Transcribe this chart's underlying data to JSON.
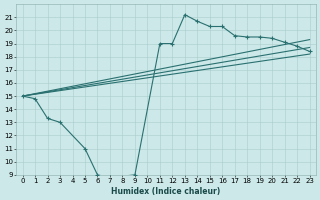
{
  "xlabel": "Humidex (Indice chaleur)",
  "bg_color": "#cce8e8",
  "line_color": "#2a7070",
  "grid_color": "#aacccc",
  "x_jagged": [
    0,
    1,
    2,
    3,
    5,
    6,
    7,
    9,
    11,
    12,
    13,
    14,
    15,
    16,
    17,
    18,
    19,
    20,
    21,
    22,
    23
  ],
  "y_jagged": [
    15.0,
    14.8,
    13.3,
    13.0,
    11.0,
    9.0,
    8.8,
    9.0,
    19.0,
    19.0,
    21.2,
    20.7,
    20.3,
    20.3,
    19.6,
    19.5,
    19.5,
    19.4,
    19.1,
    18.8,
    18.4
  ],
  "lines_straight": [
    {
      "x": [
        0,
        23
      ],
      "y": [
        15.0,
        19.3
      ]
    },
    {
      "x": [
        0,
        23
      ],
      "y": [
        15.0,
        18.7
      ]
    },
    {
      "x": [
        0,
        23
      ],
      "y": [
        15.0,
        18.2
      ]
    }
  ],
  "ylim": [
    9,
    22
  ],
  "xlim": [
    -0.5,
    23.5
  ],
  "yticks": [
    9,
    10,
    11,
    12,
    13,
    14,
    15,
    16,
    17,
    18,
    19,
    20,
    21
  ],
  "xticks": [
    0,
    1,
    2,
    3,
    4,
    5,
    6,
    7,
    8,
    9,
    10,
    11,
    12,
    13,
    14,
    15,
    16,
    17,
    18,
    19,
    20,
    21,
    22,
    23
  ]
}
